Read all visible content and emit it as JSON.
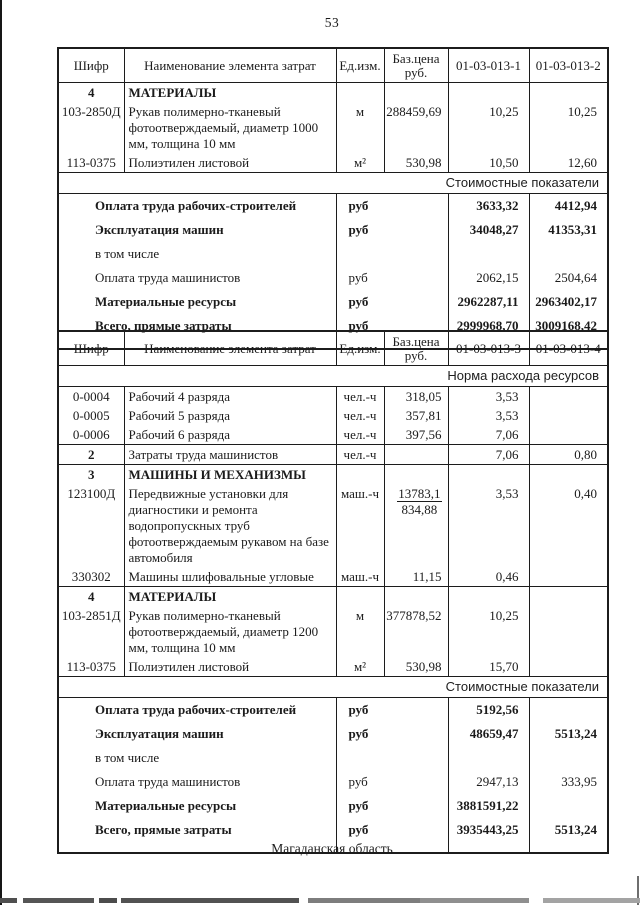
{
  "colors": {
    "ink": "#1b1b1b",
    "paper": "#ffffff"
  },
  "page": {
    "number": "53",
    "footer": "Магаданская область"
  },
  "tables": [
    {
      "headers": [
        "Шифр",
        "Наименование элемента затрат",
        "Ед.изм.",
        "Баз.цена\nруб.",
        "01-03-013-1",
        "01-03-013-2"
      ],
      "rows": [
        {
          "type": "item",
          "code": "4",
          "name": "МАТЕРИАЛЫ",
          "unit": "",
          "base": "",
          "v1": "",
          "v2": "",
          "bold": true
        },
        {
          "type": "item",
          "code": "103-2850Д",
          "name": "Рукав полимерно-тканевый фотоотверждаемый, диаметр 1000 мм, толщина 10 мм",
          "unit": "м",
          "base": "288459,69",
          "v1": "10,25",
          "v2": "10,25"
        },
        {
          "type": "item",
          "code": "113-0375",
          "name": "Полиэтилен листовой",
          "unit": "м²",
          "base": "530,98",
          "v1": "10,50",
          "v2": "12,60"
        },
        {
          "type": "banner",
          "label": "Стоимостные показатели"
        },
        {
          "type": "summary",
          "name": "Оплата труда рабочих-строителей",
          "unit": "руб",
          "v1": "3633,32",
          "v2": "4412,94",
          "bold": true
        },
        {
          "type": "summary",
          "name": "Эксплуатация машин",
          "unit": "руб",
          "v1": "34048,27",
          "v2": "41353,31",
          "bold": true
        },
        {
          "type": "summary",
          "name": "в том числе",
          "unit": "",
          "v1": "",
          "v2": ""
        },
        {
          "type": "summary",
          "name": "Оплата труда машинистов",
          "unit": "руб",
          "v1": "2062,15",
          "v2": "2504,64"
        },
        {
          "type": "summary",
          "name": "Материальные ресурсы",
          "unit": "руб",
          "v1": "2962287,11",
          "v2": "2963402,17",
          "bold": true
        },
        {
          "type": "summary",
          "name": "Всего, прямые затраты",
          "unit": "руб",
          "v1": "2999968,70",
          "v2": "3009168,42",
          "bold": true
        }
      ]
    },
    {
      "headers": [
        "Шифр",
        "Наименование элемента затрат",
        "Ед.изм.",
        "Баз.цена\nруб.",
        "01-03-013-3",
        "01-03-013-4"
      ],
      "rows": [
        {
          "type": "banner",
          "label": "Норма расхода ресурсов"
        },
        {
          "type": "item",
          "code": "0-0004",
          "name": "Рабочий 4 разряда",
          "unit": "чел.-ч",
          "base": "318,05",
          "v1": "3,53",
          "v2": ""
        },
        {
          "type": "item",
          "code": "0-0005",
          "name": "Рабочий 5 разряда",
          "unit": "чел.-ч",
          "base": "357,81",
          "v1": "3,53",
          "v2": ""
        },
        {
          "type": "item",
          "code": "0-0006",
          "name": "Рабочий 6 разряда",
          "unit": "чел.-ч",
          "base": "397,56",
          "v1": "7,06",
          "v2": ""
        },
        {
          "type": "item",
          "code": "2",
          "name": "Затраты труда машинистов",
          "unit": "чел.-ч",
          "base": "",
          "v1": "7,06",
          "v2": "0,80",
          "bold_code": true,
          "rule": true
        },
        {
          "type": "item",
          "code": "3",
          "name": "МАШИНЫ И МЕХАНИЗМЫ",
          "unit": "",
          "base": "",
          "v1": "",
          "v2": "",
          "bold": true,
          "rule": true
        },
        {
          "type": "item",
          "code": "123100Д",
          "name": "Передвижные установки для диагностики и ремонта водопропускных труб фотоотверждаемым рукавом на базе автомобиля",
          "unit": "маш.-ч",
          "base_frac": {
            "top": "13783,1",
            "bottom": "834,88"
          },
          "v1": "3,53",
          "v2": "0,40"
        },
        {
          "type": "item",
          "code": "330302",
          "name": "Машины шлифовальные угловые",
          "unit": "маш.-ч",
          "base": "11,15",
          "v1": "0,46",
          "v2": ""
        },
        {
          "type": "item",
          "code": "4",
          "name": "МАТЕРИАЛЫ",
          "unit": "",
          "base": "",
          "v1": "",
          "v2": "",
          "bold": true,
          "rule": true
        },
        {
          "type": "item",
          "code": "103-2851Д",
          "name": "Рукав полимерно-тканевый фотоотверждаемый, диаметр 1200 мм, толщина 10 мм",
          "unit": "м",
          "base": "377878,52",
          "v1": "10,25",
          "v2": ""
        },
        {
          "type": "item",
          "code": "113-0375",
          "name": "Полиэтилен листовой",
          "unit": "м²",
          "base": "530,98",
          "v1": "15,70",
          "v2": ""
        },
        {
          "type": "banner",
          "label": "Стоимостные показатели"
        },
        {
          "type": "summary",
          "name": "Оплата труда рабочих-строителей",
          "unit": "руб",
          "v1": "5192,56",
          "v2": "",
          "bold": true
        },
        {
          "type": "summary",
          "name": "Эксплуатация машин",
          "unit": "руб",
          "v1": "48659,47",
          "v2": "5513,24",
          "bold": true
        },
        {
          "type": "summary",
          "name": "в том числе",
          "unit": "",
          "v1": "",
          "v2": ""
        },
        {
          "type": "summary",
          "name": "Оплата труда машинистов",
          "unit": "руб",
          "v1": "2947,13",
          "v2": "333,95"
        },
        {
          "type": "summary",
          "name": "Материальные ресурсы",
          "unit": "руб",
          "v1": "3881591,22",
          "v2": "",
          "bold": true
        },
        {
          "type": "summary",
          "name": "Всего, прямые затраты",
          "unit": "руб",
          "v1": "3935443,25",
          "v2": "5513,24",
          "bold": true
        }
      ]
    }
  ]
}
